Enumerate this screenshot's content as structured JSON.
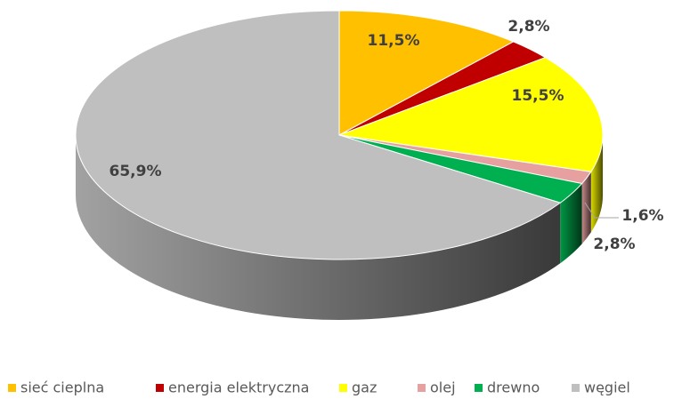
{
  "chart_data": {
    "type": "pie",
    "categories": [
      "sieć cieplna",
      "energia elektryczna",
      "gaz",
      "olej",
      "drewno",
      "węgiel"
    ],
    "values": [
      11.5,
      2.8,
      15.5,
      1.6,
      2.8,
      65.9
    ],
    "value_labels": [
      "11,5%",
      "2,8%",
      "15,5%",
      "1,6%",
      "2,8%",
      "65,9%"
    ],
    "colors": [
      "#FFC000",
      "#C00000",
      "#FFFF00",
      "#E6A0A0",
      "#00B050",
      "#BFBFBF"
    ],
    "legend": "bottom"
  }
}
